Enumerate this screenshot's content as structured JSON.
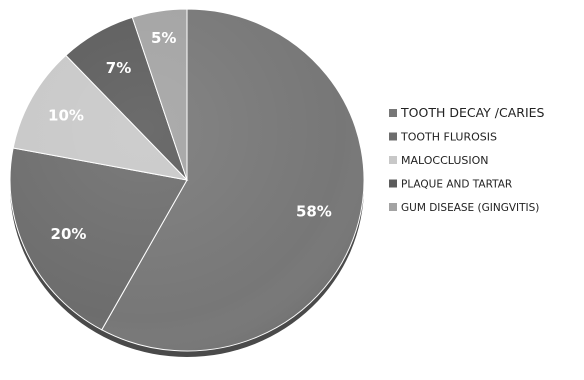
{
  "chart_data": {
    "type": "pie",
    "categories": [
      "TOOTH DECAY /CARIES",
      "TOOTH FLUROSIS",
      "MALOCCLUSION",
      "PLAQUE AND TARTAR",
      "GUM DISEASE  (GINGVITIS)"
    ],
    "values": [
      58,
      20,
      10,
      7,
      5
    ],
    "data_labels": [
      "58%",
      "20%",
      "10%",
      "7%",
      "5%"
    ],
    "colors": [
      "#777777",
      "#6d6d6d",
      "#c8c8c8",
      "#5c5c5c",
      "#a3a3a3"
    ],
    "legend_position": "right",
    "start_angle_deg": 0,
    "direction": "clockwise"
  }
}
